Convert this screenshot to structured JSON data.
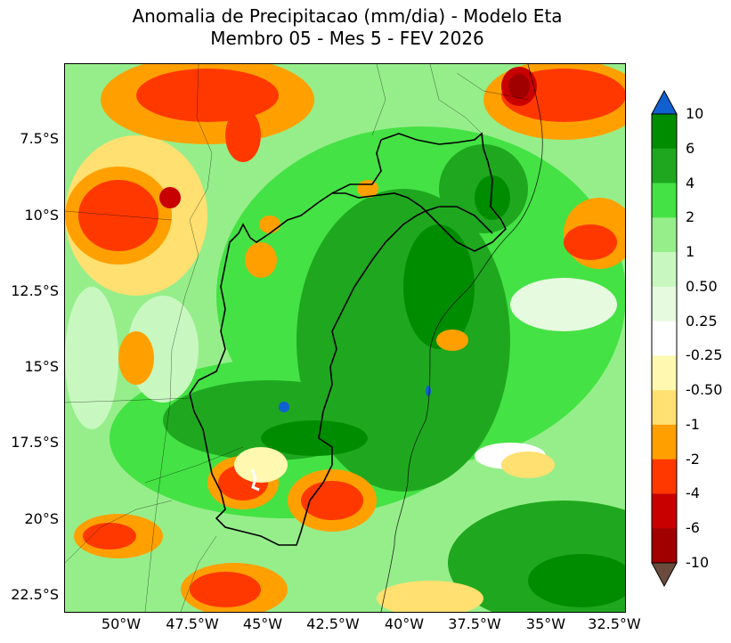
{
  "title": {
    "line1": "Anomalia de Precipitacao (mm/dia) - Modelo Eta",
    "line2": "Membro 05 - Mes 5 - FEV 2026"
  },
  "axes": {
    "lat_ticks": [
      "7.5°S",
      "10°S",
      "12.5°S",
      "15°S",
      "17.5°S",
      "20°S",
      "22.5°S"
    ],
    "lon_ticks": [
      "50°W",
      "47.5°W",
      "45°W",
      "42.5°W",
      "40°W",
      "37.5°W",
      "35°W",
      "32.5°W"
    ]
  },
  "colorbar": {
    "labels": [
      "10",
      "6",
      "4",
      "2",
      "1",
      "0.50",
      "0.25",
      "-0.25",
      "-0.50",
      "-1",
      "-2",
      "-4",
      "-6",
      "-10"
    ],
    "colors": [
      "#008c00",
      "#1fa81f",
      "#44e244",
      "#96ee8a",
      "#c8f8c0",
      "#e6fae0",
      "#ffffff",
      "#fff8b0",
      "#ffe070",
      "#ffa000",
      "#ff3800",
      "#c80000",
      "#a00000"
    ],
    "max_arrow_color": "#1060d0",
    "min_arrow_color": "#6a4b3e"
  }
}
